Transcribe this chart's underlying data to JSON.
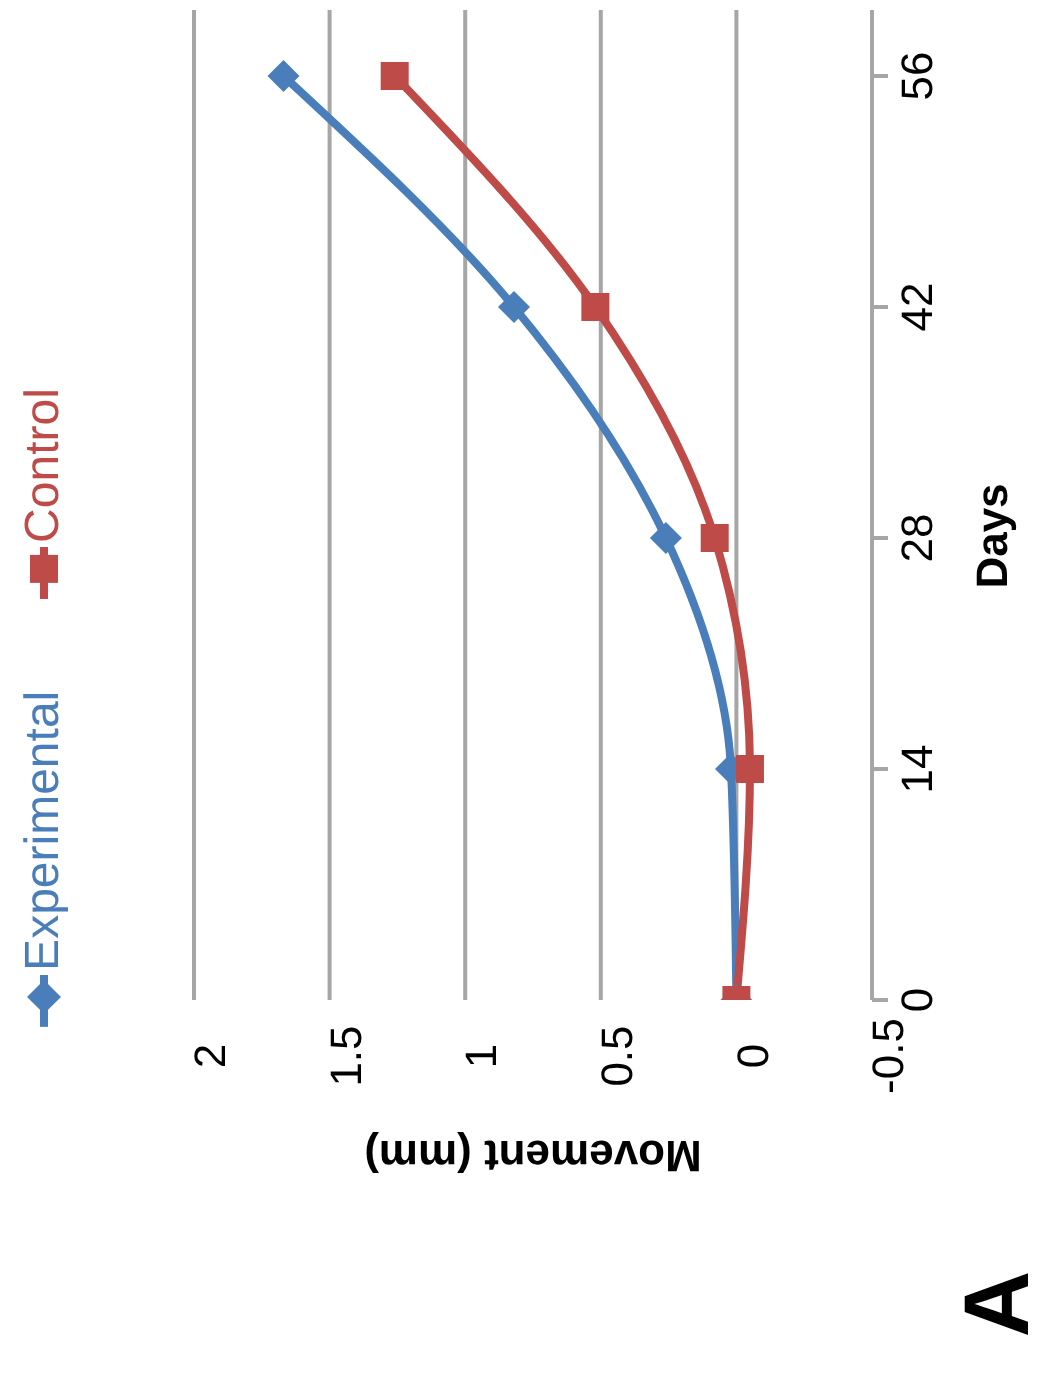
{
  "chart_data": {
    "type": "line",
    "xlabel": "Movement (mm)",
    "ylabel": "Days",
    "annotations": [
      "A"
    ],
    "series": [
      {
        "name": "Experimental",
        "color": "#4a7ebb",
        "x": [
          0,
          0.02,
          0.26,
          0.82,
          1.67
        ],
        "values": [
          0,
          14,
          28,
          42,
          56
        ],
        "marker": "diamond"
      },
      {
        "name": "Control",
        "color": "#be4b48",
        "x": [
          0,
          -0.05,
          0.08,
          0.52,
          1.26
        ],
        "values": [
          0,
          14,
          28,
          42,
          56
        ],
        "marker": "square"
      }
    ],
    "xlim": [
      2,
      -0.5
    ],
    "xticks": [
      -0.5,
      0,
      0.5,
      1,
      1.5,
      2
    ],
    "ylim": [
      0,
      60
    ],
    "yticks": [
      0,
      14,
      28,
      42,
      56
    ],
    "grid": "x",
    "legend": "left",
    "line_style": "solid"
  }
}
